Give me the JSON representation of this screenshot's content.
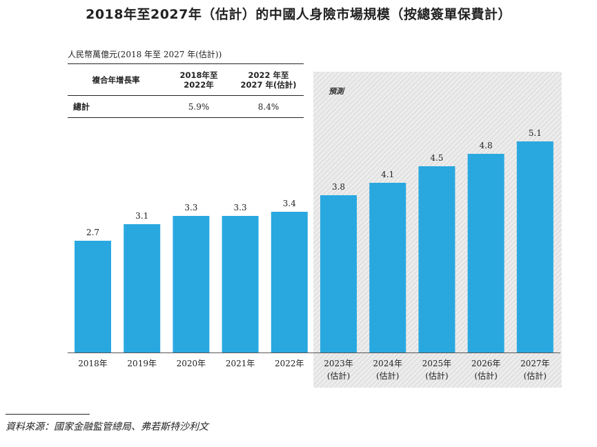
{
  "chart_data": {
    "type": "bar",
    "title": "2018年至2027年（估計）的中國人身險市場規模（按總簽單保費計）",
    "unit_label": "人民幣萬億元(2018 年至 2027 年(估計))",
    "categories": [
      "2018年",
      "2019年",
      "2020年",
      "2021年",
      "2022年",
      "2023年",
      "2024年",
      "2025年",
      "2026年",
      "2027年"
    ],
    "category_sublabels": [
      "",
      "",
      "",
      "",
      "",
      "(估計)",
      "(估計)",
      "(估計)",
      "(估計)",
      "(估計)"
    ],
    "values": [
      2.7,
      3.1,
      3.3,
      3.3,
      3.4,
      3.8,
      4.1,
      4.5,
      4.8,
      5.1
    ],
    "value_labels": [
      "2.7",
      "3.1",
      "3.3",
      "3.3",
      "3.4",
      "3.8",
      "4.1",
      "4.5",
      "4.8",
      "5.1"
    ],
    "ylim": [
      0,
      5.5
    ],
    "bar_color": "#29A8E0",
    "forecast_label": "預測",
    "forecast_start_index": 5,
    "grid": false,
    "cagr_table": {
      "header_col1": "複合年增長率",
      "header_col2_line1": "2018年至",
      "header_col2_line2": "2022年",
      "header_col3_line1": "2022 年至",
      "header_col3_line2": "2027 年(估計)",
      "row_label": "總計",
      "value_col2": "5.9%",
      "value_col3": "8.4%"
    }
  },
  "source": "資料來源：國家金融監管總局、弗若斯特沙利文"
}
